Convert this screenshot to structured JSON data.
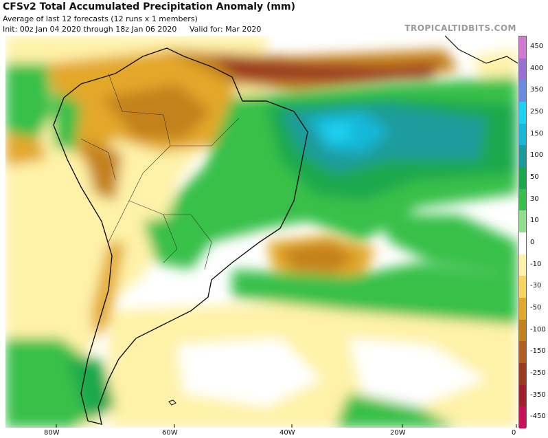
{
  "header": {
    "title": "CFSv2 Total Accumulated Precipitation Anomaly (mm)",
    "subtitle": "Average of last 12 forecasts (12 runs x 1 members)",
    "init": "Init: 00z Jan 04 2020 through 18z Jan 06 2020",
    "valid": "Valid for: Mar 2020",
    "brand": "TROPICALTIDBITS.COM"
  },
  "colorbar": {
    "labels": [
      "450",
      "400",
      "350",
      "250",
      "150",
      "100",
      "50",
      "30",
      "10",
      "0",
      "-10",
      "-30",
      "-50",
      "-100",
      "-150",
      "-250",
      "-350",
      "-450"
    ],
    "colors": [
      "#d17ad1",
      "#9a6fd6",
      "#6a8be0",
      "#1ad2f2",
      "#17b8d8",
      "#1a9c9c",
      "#1aa84e",
      "#39c04a",
      "#8fe08a",
      "#ffffff",
      "#fff2a8",
      "#f7d65e",
      "#e3a82a",
      "#c4821c",
      "#b05e22",
      "#9a3a20",
      "#a02030",
      "#cc0f5a"
    ]
  },
  "axis": {
    "lon_ticks": [
      "80W",
      "60W",
      "40W",
      "20W",
      "0"
    ]
  }
}
